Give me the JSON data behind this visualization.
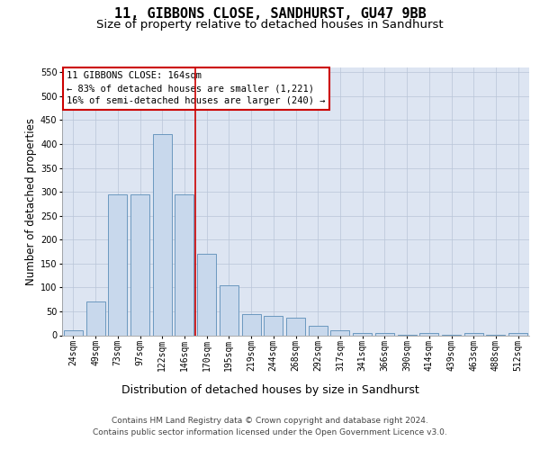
{
  "title": "11, GIBBONS CLOSE, SANDHURST, GU47 9BB",
  "subtitle": "Size of property relative to detached houses in Sandhurst",
  "xlabel": "Distribution of detached houses by size in Sandhurst",
  "ylabel": "Number of detached properties",
  "categories": [
    "24sqm",
    "49sqm",
    "73sqm",
    "97sqm",
    "122sqm",
    "146sqm",
    "170sqm",
    "195sqm",
    "219sqm",
    "244sqm",
    "268sqm",
    "292sqm",
    "317sqm",
    "341sqm",
    "366sqm",
    "390sqm",
    "414sqm",
    "439sqm",
    "463sqm",
    "488sqm",
    "512sqm"
  ],
  "values": [
    10,
    70,
    295,
    295,
    420,
    295,
    170,
    105,
    45,
    40,
    37,
    20,
    10,
    5,
    4,
    1,
    4,
    1,
    4,
    1,
    4
  ],
  "bar_color": "#c8d8ec",
  "bar_edge_color": "#5b8db8",
  "vline_index": 5.5,
  "vline_color": "#cc0000",
  "annotation_title": "11 GIBBONS CLOSE: 164sqm",
  "annotation_line1": "← 83% of detached houses are smaller (1,221)",
  "annotation_line2": "16% of semi-detached houses are larger (240) →",
  "annotation_edge_color": "#cc0000",
  "grid_color": "#b8c4d8",
  "background_color": "#dde5f2",
  "ylim": [
    0,
    560
  ],
  "yticks": [
    0,
    50,
    100,
    150,
    200,
    250,
    300,
    350,
    400,
    450,
    500,
    550
  ],
  "title_fontsize": 11,
  "subtitle_fontsize": 9.5,
  "tick_fontsize": 7,
  "ylabel_fontsize": 8.5,
  "xlabel_fontsize": 9,
  "ann_fontsize": 7.5,
  "footer1": "Contains HM Land Registry data © Crown copyright and database right 2024.",
  "footer2": "Contains public sector information licensed under the Open Government Licence v3.0.",
  "footer_fontsize": 6.5
}
